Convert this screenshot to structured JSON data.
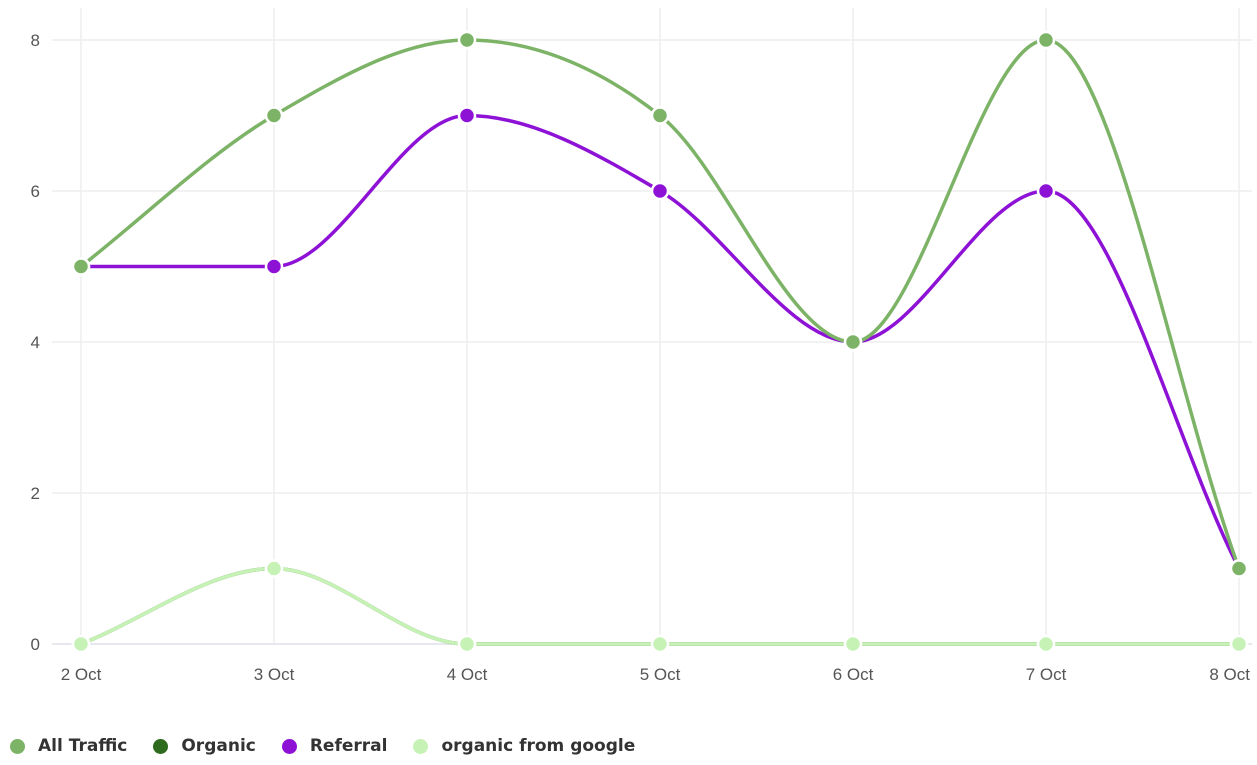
{
  "chart_data": {
    "type": "line",
    "categories": [
      "2 Oct",
      "3 Oct",
      "4 Oct",
      "5 Oct",
      "6 Oct",
      "7 Oct",
      "8 Oct"
    ],
    "ylim": [
      0,
      8
    ],
    "yticks": [
      0,
      2,
      4,
      6,
      8
    ],
    "grid": true,
    "legend_position": "bottom-left",
    "series": [
      {
        "name": "All Traffic",
        "color": "#7cb366",
        "values": [
          5,
          7,
          8,
          7,
          4,
          8,
          1
        ]
      },
      {
        "name": "Organic",
        "color": "#2e6b1f",
        "values": [
          0,
          1,
          0,
          0,
          0,
          0,
          0
        ]
      },
      {
        "name": "Referral",
        "color": "#8e12d6",
        "values": [
          5,
          5,
          7,
          6,
          4,
          6,
          1
        ]
      },
      {
        "name": "organic from google",
        "color": "#c6f2b6",
        "values": [
          0,
          1,
          0,
          0,
          0,
          0,
          0
        ]
      }
    ]
  }
}
